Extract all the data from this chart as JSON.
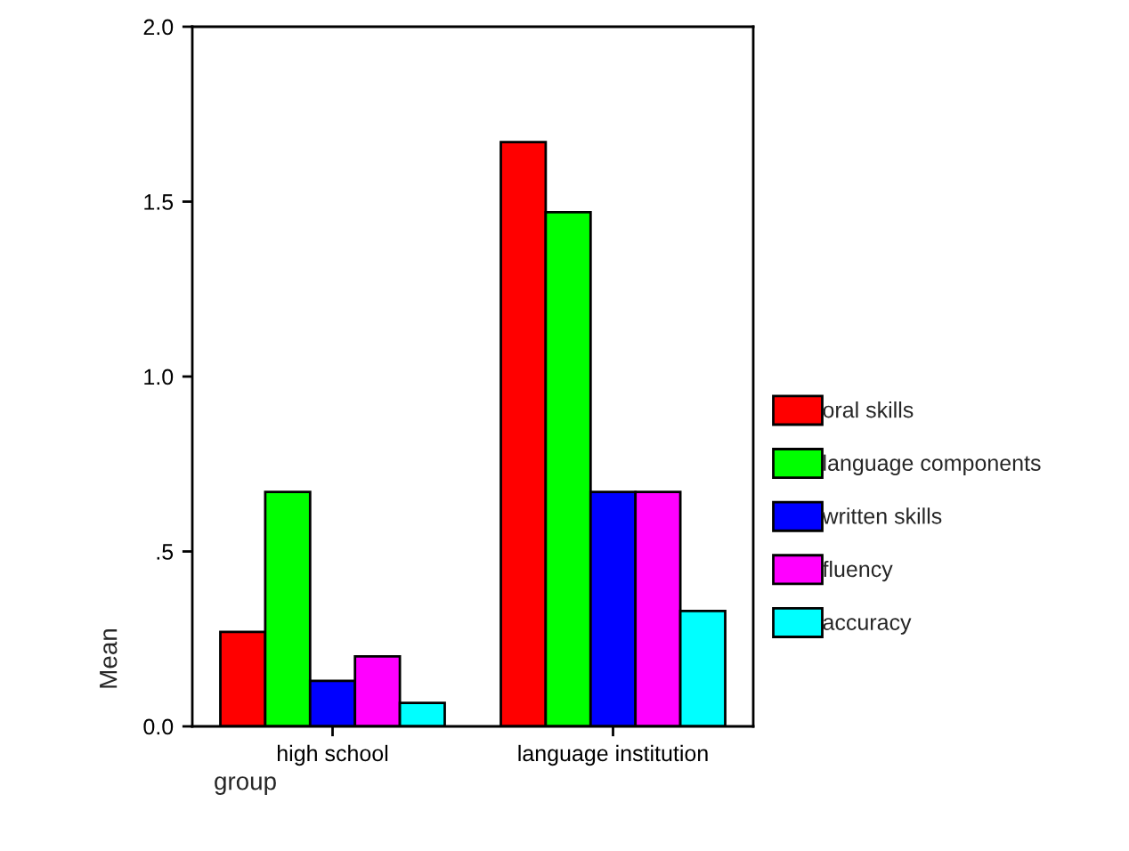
{
  "chart_data": {
    "type": "bar",
    "xlabel": "group",
    "ylabel": "Mean",
    "categories": [
      "high school",
      "language institution"
    ],
    "series": [
      {
        "name": "oral skills",
        "color": "#ff0000",
        "values": [
          0.27,
          1.67
        ]
      },
      {
        "name": "language components",
        "color": "#00ff00",
        "values": [
          0.67,
          1.47
        ]
      },
      {
        "name": "written skills",
        "color": "#0000ff",
        "values": [
          0.13,
          0.67
        ]
      },
      {
        "name": "fluency",
        "color": "#ff00ff",
        "values": [
          0.2,
          0.67
        ]
      },
      {
        "name": "accuracy",
        "color": "#00ffff",
        "values": [
          0.067,
          0.33
        ]
      }
    ],
    "ylim": [
      0,
      2.0
    ],
    "yticks": [
      {
        "value": 0,
        "label": "0.0"
      },
      {
        "value": 0.5,
        "label": ".5"
      },
      {
        "value": 1.0,
        "label": "1.0"
      },
      {
        "value": 1.5,
        "label": "1.5"
      },
      {
        "value": 2.0,
        "label": "2.0"
      }
    ],
    "grid": false,
    "legend": "right"
  }
}
